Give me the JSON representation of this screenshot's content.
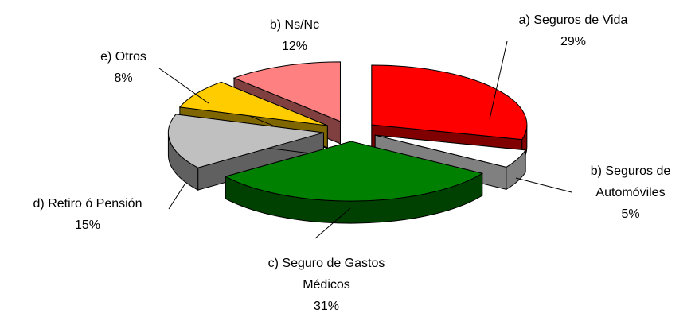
{
  "chart_data": {
    "type": "pie3d",
    "categories": [
      "a) Seguros de Vida",
      "b) Seguros de Automóviles",
      "c) Seguro de Gastos Médicos",
      "d) Retiro ó Pensión",
      "e) Otros",
      "b) Ns/Nc"
    ],
    "values": [
      29,
      5,
      31,
      15,
      8,
      12
    ],
    "value_labels": [
      "29%",
      "5%",
      "31%",
      "15%",
      "8%",
      "12%"
    ],
    "colors": [
      "#ff0000",
      "#ffffff",
      "#008000",
      "#c0c0c0",
      "#ffcc00",
      "#ff8080"
    ]
  }
}
